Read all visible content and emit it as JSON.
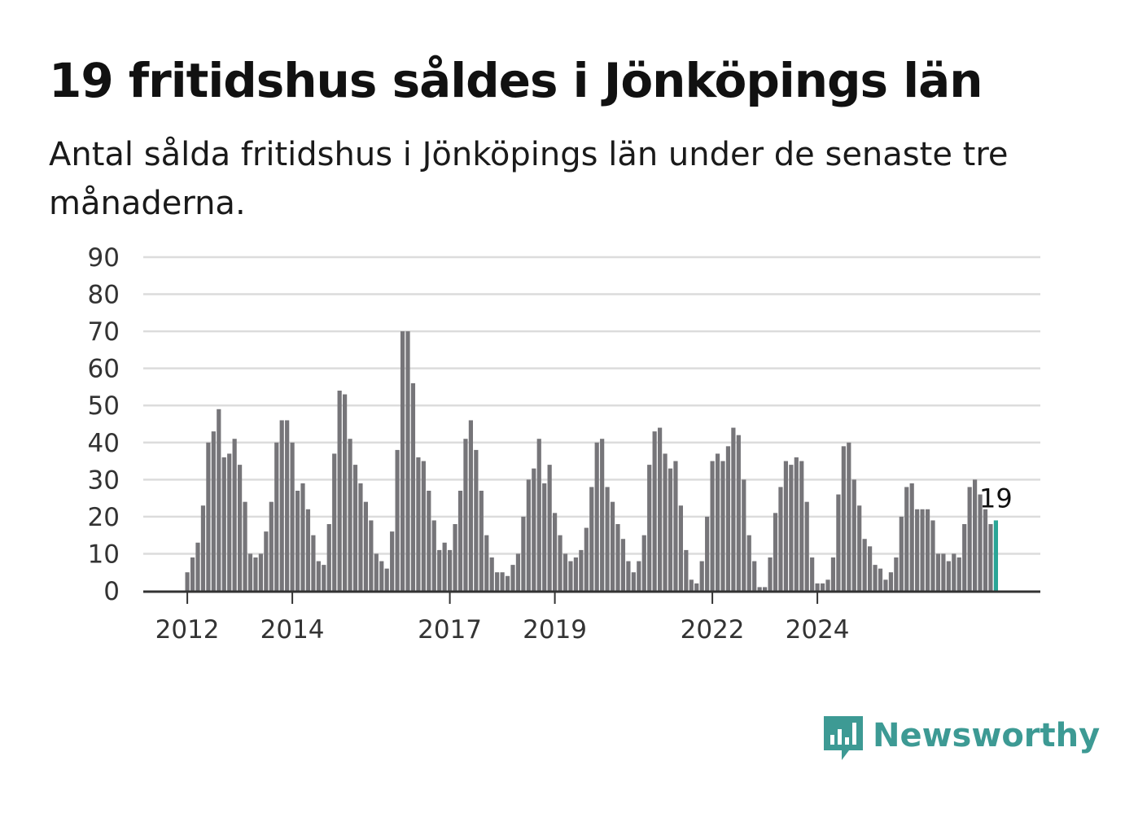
{
  "brand": {
    "name": "Newsworthy",
    "color": "#3d9a94"
  },
  "chart_data": {
    "type": "bar",
    "title": "19 fritidshus såldes i Jönköpings län",
    "subtitle": "Antal sålda fritidshus i Jönköpings län under de senaste tre månaderna.",
    "xlabel": "",
    "ylabel": "",
    "ylim": [
      0,
      90
    ],
    "yticks": [
      0,
      10,
      20,
      30,
      40,
      50,
      60,
      70,
      80,
      90
    ],
    "x_ticks": [
      {
        "label": "2012",
        "index": 0
      },
      {
        "label": "2014",
        "index": 20
      },
      {
        "label": "2017",
        "index": 50
      },
      {
        "label": "2019",
        "index": 70
      },
      {
        "label": "2022",
        "index": 100
      },
      {
        "label": "2024",
        "index": 120
      }
    ],
    "grid": true,
    "bar_color": "#767579",
    "highlight_color": "#2aa596",
    "highlight_label": "19",
    "values": [
      5,
      9,
      13,
      23,
      40,
      43,
      49,
      36,
      37,
      41,
      34,
      24,
      10,
      9,
      10,
      16,
      24,
      40,
      46,
      46,
      40,
      27,
      29,
      22,
      15,
      8,
      7,
      18,
      37,
      54,
      53,
      41,
      34,
      29,
      24,
      19,
      10,
      8,
      6,
      16,
      38,
      70,
      70,
      56,
      36,
      35,
      27,
      19,
      11,
      13,
      11,
      18,
      27,
      41,
      46,
      38,
      27,
      15,
      9,
      5,
      5,
      4,
      7,
      10,
      20,
      30,
      33,
      41,
      29,
      34,
      21,
      15,
      10,
      8,
      9,
      11,
      17,
      28,
      40,
      41,
      28,
      24,
      18,
      14,
      8,
      5,
      8,
      15,
      34,
      43,
      44,
      37,
      33,
      35,
      23,
      11,
      3,
      2,
      8,
      20,
      35,
      37,
      35,
      39,
      44,
      42,
      30,
      15,
      8,
      1,
      1,
      9,
      21,
      28,
      35,
      34,
      36,
      35,
      24,
      9,
      2,
      2,
      3,
      9,
      26,
      39,
      40,
      30,
      23,
      14,
      12,
      7,
      6,
      3,
      5,
      9,
      20,
      28,
      29,
      22,
      22,
      22,
      19,
      10,
      10,
      8,
      10,
      9,
      18,
      28,
      30,
      26,
      22,
      18,
      19
    ]
  }
}
